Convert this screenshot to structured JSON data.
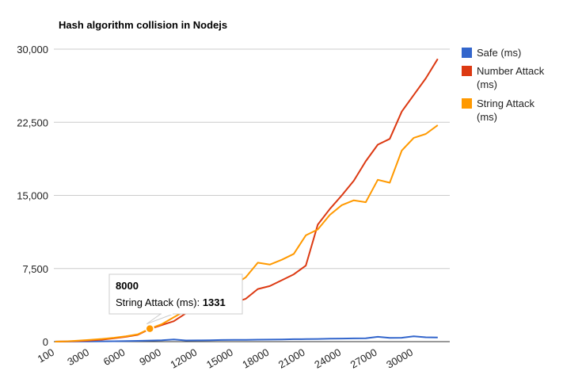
{
  "chart_data": {
    "type": "line",
    "title": "Hash algorithm collision in Nodejs",
    "xlabel": "",
    "ylabel": "",
    "x": [
      100,
      1000,
      2000,
      3000,
      4000,
      5000,
      6000,
      7000,
      8000,
      9000,
      10000,
      11000,
      12000,
      13000,
      14000,
      15000,
      16000,
      17000,
      18000,
      19000,
      20000,
      21000,
      22000,
      23000,
      24000,
      25000,
      26000,
      27000,
      28000,
      29000,
      30000,
      31000,
      32000
    ],
    "x_tick_labels": [
      "100",
      "3000",
      "6000",
      "9000",
      "12000",
      "15000",
      "18000",
      "21000",
      "24000",
      "27000",
      "30000"
    ],
    "y_tick_labels": [
      "0",
      "7,500",
      "15,000",
      "22,500",
      "30,000"
    ],
    "ylim": [
      0,
      30000
    ],
    "gridlines": true,
    "legend_position": "right",
    "series": [
      {
        "name": "Safe (ms)",
        "color": "#3366cc",
        "values": [
          5,
          8,
          15,
          20,
          30,
          40,
          60,
          80,
          110,
          150,
          220,
          120,
          130,
          150,
          170,
          180,
          190,
          200,
          210,
          230,
          250,
          260,
          280,
          300,
          320,
          330,
          350,
          500,
          380,
          400,
          550,
          450,
          430
        ]
      },
      {
        "name": "Number Attack (ms)",
        "color": "#dc3912",
        "values": [
          0,
          20,
          60,
          120,
          200,
          350,
          500,
          700,
          1300,
          1700,
          2100,
          2900,
          3500,
          3700,
          3900,
          4000,
          4400,
          5400,
          5700,
          6300,
          6900,
          7800,
          12000,
          13600,
          15000,
          16500,
          18500,
          20200,
          20800,
          23600,
          25300,
          27000,
          29000
        ]
      },
      {
        "name": "String Attack (ms)",
        "color": "#ff9900",
        "values": [
          0,
          30,
          100,
          180,
          280,
          400,
          550,
          750,
          1331,
          1800,
          2500,
          3200,
          3700,
          4100,
          4900,
          5800,
          6600,
          8100,
          7900,
          8400,
          9000,
          10900,
          11500,
          13000,
          14000,
          14500,
          14300,
          16600,
          16300,
          19600,
          20900,
          21300,
          22200
        ]
      }
    ],
    "tooltip": {
      "title": "8000",
      "series_label": "String Attack (ms):",
      "value": "1331"
    }
  }
}
